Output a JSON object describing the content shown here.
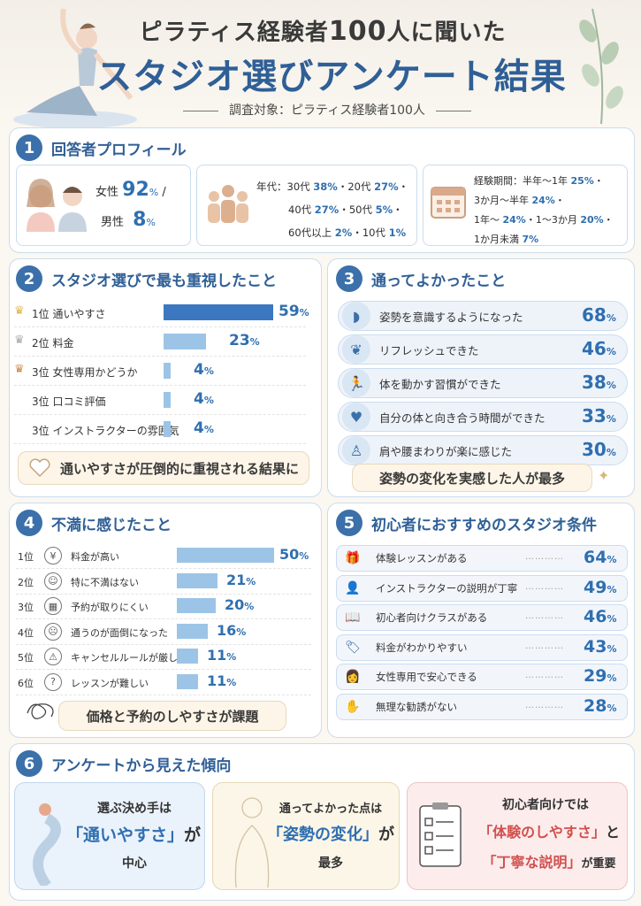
{
  "header": {
    "title_line1_pre": "ピラティス経験者",
    "title_line1_num": "100",
    "title_line1_post": "人に聞いた",
    "title_line2": "スタジオ選びアンケート結果",
    "subtitle": "調査対象：ピラティス経験者100人"
  },
  "s1": {
    "num": "1",
    "title": "回答者プロフィール",
    "gender": {
      "female_label": "女性",
      "female_val": "92",
      "female_unit": "%",
      "sep": "/",
      "male_label": "男性",
      "male_val": "8",
      "male_unit": "%"
    },
    "age": {
      "line1_pre": "年代：30代",
      "v1": "38%",
      "line1_mid": "・20代",
      "v2": "27%",
      "line1_end": "・",
      "line2_pre": "40代",
      "v3": "27%",
      "line2_mid": "・50代",
      "v4": "5%",
      "line2_end": "・",
      "line3_pre": "60代以上",
      "v5": "2%",
      "line3_mid": "・10代",
      "v6": "1%"
    },
    "exp": {
      "line1_pre": "経験期間：半年～1年",
      "v1": "25%",
      "line1_end": "・",
      "line2_pre": "3か月～半年",
      "v2": "24%",
      "line2_end": "・",
      "line3_pre": "1年～",
      "v3": "24%",
      "line3_mid": "・1～3か月",
      "v4": "20%",
      "line3_end": "・",
      "line4_pre": "1か月未満",
      "v5": "7%"
    }
  },
  "s2": {
    "num": "2",
    "title": "スタジオ選びで最も重視したこと",
    "items": [
      {
        "rank": "1位",
        "label": "通いやすさ",
        "value": 59
      },
      {
        "rank": "2位",
        "label": "料金",
        "value": 23
      },
      {
        "rank": "3位",
        "label": "女性専用かどうか",
        "value": 4
      },
      {
        "rank": "3位",
        "label": "口コミ評価",
        "value": 4
      },
      {
        "rank": "3位",
        "label": "インストラクターの雰囲気",
        "value": 4
      }
    ],
    "unit": "%",
    "note": "通いやすさが圧倒的に重視される結果に"
  },
  "s3": {
    "num": "3",
    "title": "通ってよかったこと",
    "items": [
      {
        "label": "姿勢を意識するようになった",
        "value": "68",
        "icon": "posture-icon"
      },
      {
        "label": "リフレッシュできた",
        "value": "46",
        "icon": "leaf-icon"
      },
      {
        "label": "体を動かす習慣ができた",
        "value": "38",
        "icon": "runner-icon"
      },
      {
        "label": "自分の体と向き合う時間ができた",
        "value": "33",
        "icon": "heart-icon"
      },
      {
        "label": "肩や腰まわりが楽に感じた",
        "value": "30",
        "icon": "body-icon"
      }
    ],
    "unit": "%",
    "note": "姿勢の変化を実感した人が最多"
  },
  "s4": {
    "num": "4",
    "title": "不満に感じたこと",
    "items": [
      {
        "rank": "1位",
        "label": "料金が高い",
        "value": 50,
        "icon": "¥"
      },
      {
        "rank": "2位",
        "label": "特に不満はない",
        "value": 21,
        "icon": "☺"
      },
      {
        "rank": "3位",
        "label": "予約が取りにくい",
        "value": 20,
        "icon": "▦"
      },
      {
        "rank": "4位",
        "label": "通うのが面倒になった",
        "value": 16,
        "icon": "☹"
      },
      {
        "rank": "5位",
        "label": "キャンセルルールが厳しい",
        "value": 11,
        "icon": "⚠"
      },
      {
        "rank": "6位",
        "label": "レッスンが難しい",
        "value": 11,
        "icon": "?"
      }
    ],
    "unit": "%",
    "note": "価格と予約のしやすさが課題"
  },
  "s5": {
    "num": "5",
    "title": "初心者におすすめのスタジオ条件",
    "items": [
      {
        "label": "体験レッスンがある",
        "value": "64",
        "icon": "gift-icon"
      },
      {
        "label": "インストラクターの説明が丁寧",
        "value": "49",
        "icon": "instructor-icon"
      },
      {
        "label": "初心者向けクラスがある",
        "value": "46",
        "icon": "book-icon"
      },
      {
        "label": "料金がわかりやすい",
        "value": "43",
        "icon": "price-tag-icon"
      },
      {
        "label": "女性専用で安心できる",
        "value": "29",
        "icon": "woman-icon"
      },
      {
        "label": "無理な勧誘がない",
        "value": "28",
        "icon": "hand-icon"
      }
    ],
    "unit": "%",
    "dots": "…………"
  },
  "s6": {
    "num": "6",
    "title": "アンケートから見えた傾向",
    "c1": {
      "l1": "選ぶ決め手は",
      "hl": "「通いやすさ」",
      "l2_post": "が",
      "l3": "中心"
    },
    "c2": {
      "l1": "通ってよかった点は",
      "hl": "「姿勢の変化」",
      "l2_post": "が",
      "l3": "最多"
    },
    "c3": {
      "l1": "初心者向けでは",
      "hl1": "「体験のしやすさ」",
      "hl1_post": "と",
      "hl2": "「丁寧な説明」",
      "hl2_post": "が重要"
    }
  },
  "colors": {
    "accent": "#2f5f96",
    "bar": "#9cc4e6",
    "bar_top": "#3b78c0",
    "note_bg": "#fdf5e8"
  }
}
